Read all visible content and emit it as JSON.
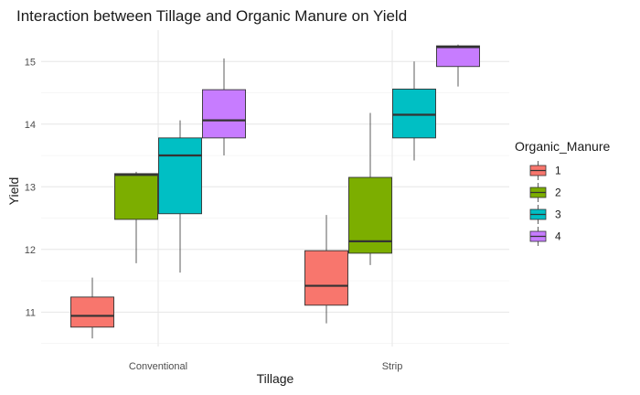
{
  "chart_data": {
    "type": "boxplot",
    "title": "Interaction between Tillage and Organic Manure on Yield",
    "xlabel": "Tillage",
    "ylabel": "Yield",
    "categories": [
      "Conventional",
      "Strip"
    ],
    "ylim": [
      10.45,
      15.5
    ],
    "yticks": [
      11,
      12,
      13,
      14,
      15
    ],
    "grid": true,
    "legend": {
      "title": "Organic_Manure",
      "position": "right",
      "entries": [
        "1",
        "2",
        "3",
        "4"
      ]
    },
    "series": [
      {
        "name": "1",
        "color": "#F8766D",
        "boxes": [
          {
            "min": 10.58,
            "q1": 10.76,
            "median": 10.94,
            "q3": 11.24,
            "max": 11.55
          },
          {
            "min": 10.82,
            "q1": 11.11,
            "median": 11.42,
            "q3": 11.98,
            "max": 12.55
          }
        ]
      },
      {
        "name": "2",
        "color": "#7CAE00",
        "boxes": [
          {
            "min": 11.78,
            "q1": 12.48,
            "median": 13.19,
            "q3": 13.21,
            "max": 13.24
          },
          {
            "min": 11.75,
            "q1": 11.94,
            "median": 12.13,
            "q3": 13.15,
            "max": 14.18
          }
        ]
      },
      {
        "name": "3",
        "color": "#00BFC4",
        "boxes": [
          {
            "min": 11.63,
            "q1": 12.57,
            "median": 13.5,
            "q3": 13.78,
            "max": 14.06
          },
          {
            "min": 13.42,
            "q1": 13.78,
            "median": 14.15,
            "q3": 14.56,
            "max": 15.0
          }
        ]
      },
      {
        "name": "4",
        "color": "#C77CFF",
        "boxes": [
          {
            "min": 13.5,
            "q1": 13.78,
            "median": 14.06,
            "q3": 14.55,
            "max": 15.05
          },
          {
            "min": 14.6,
            "q1": 14.92,
            "median": 15.23,
            "q3": 15.25,
            "max": 15.27
          }
        ]
      }
    ]
  }
}
